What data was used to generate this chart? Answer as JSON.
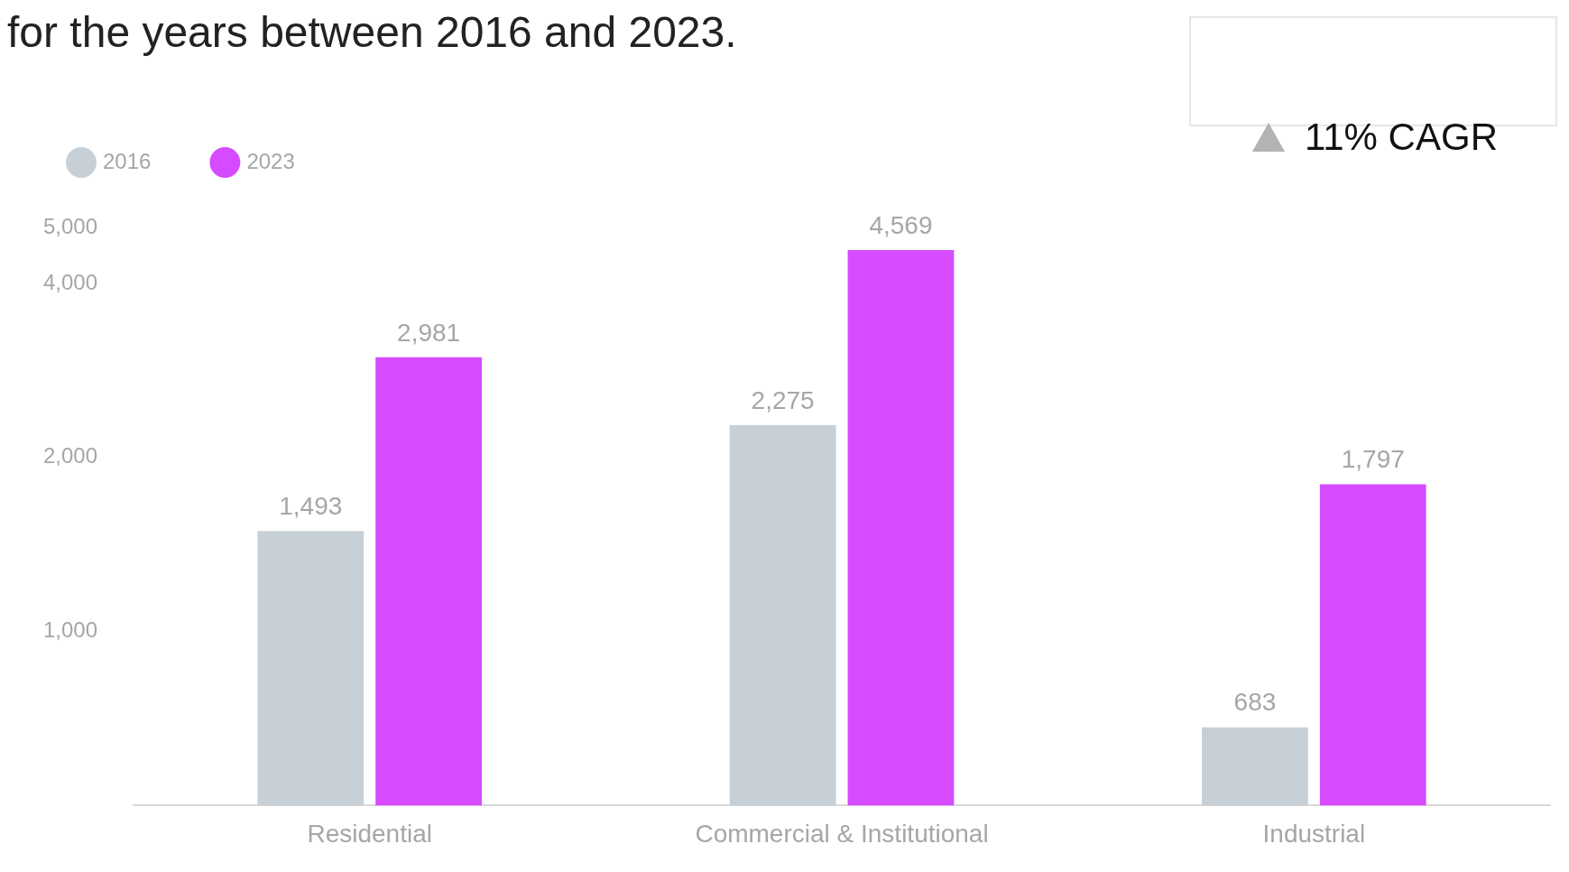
{
  "chart_data": {
    "type": "bar",
    "title": "for the years between 2016 and 2023.",
    "categories": [
      "Residential",
      "Commercial & Institutional",
      "Industrial"
    ],
    "series": [
      {
        "name": "2016",
        "color": "#c6d0d6",
        "values": [
          1493,
          2275,
          683
        ],
        "value_labels": [
          "1,493",
          "2,275",
          "683"
        ]
      },
      {
        "name": "2023",
        "color": "#d64bff",
        "values": [
          2981,
          4569,
          1797
        ],
        "value_labels": [
          "2,981",
          "4,569",
          "1,797"
        ]
      }
    ],
    "log": true,
    "ylim": [
      500,
      5000
    ],
    "yticks": [
      {
        "value": 1000,
        "label": "1,000"
      },
      {
        "value": 2000,
        "label": "2,000"
      },
      {
        "value": 4000,
        "label": "4,000"
      },
      {
        "value": 5000,
        "label": "5,000"
      }
    ],
    "grid": false,
    "legend": "top left",
    "annotations": [
      "11% CAGR"
    ]
  }
}
